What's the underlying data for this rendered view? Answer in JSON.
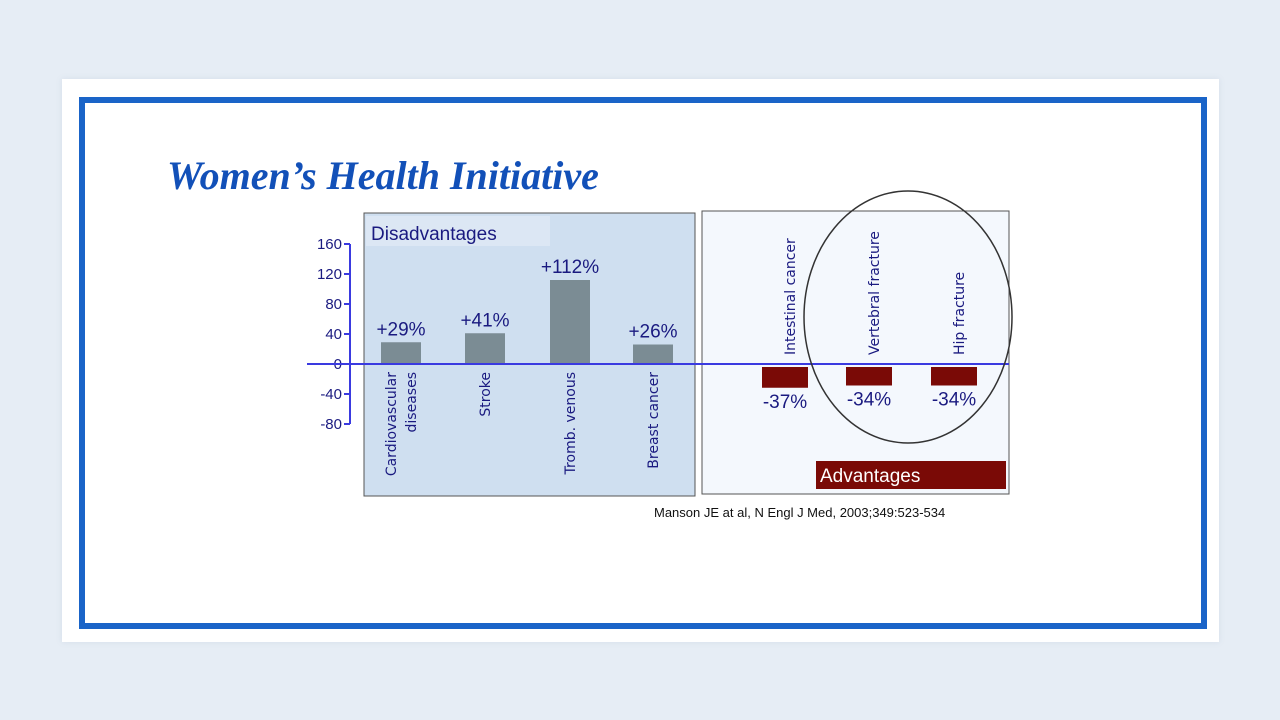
{
  "slide": {
    "title": "Women’s Health Initiative",
    "citation": "Manson JE at al, N Engl J Med, 2003;349:523-534"
  },
  "chart_data": {
    "type": "bar",
    "yticks": [
      160,
      120,
      80,
      40,
      0,
      -40,
      -80
    ],
    "ylim": [
      -80,
      160
    ],
    "panels": {
      "disadvantages": "Disadvantages",
      "advantages": "Advantages"
    },
    "series": [
      {
        "group": "disadvantages",
        "color": "#7b8c94",
        "categories": [
          [
            "Cardiovascular",
            "diseases"
          ],
          [
            "Stroke"
          ],
          [
            "Tromb. venous"
          ],
          [
            "Breast cancer"
          ]
        ],
        "values": [
          29,
          41,
          112,
          26
        ],
        "labels": [
          "+29%",
          "+41%",
          "+112%",
          "+26%"
        ]
      },
      {
        "group": "advantages",
        "color": "#7a0a06",
        "categories": [
          [
            "Intestinal cancer"
          ],
          [
            "Vertebral fracture"
          ],
          [
            "Hip fracture"
          ]
        ],
        "values": [
          -37,
          -34,
          -34
        ],
        "labels": [
          "-37%",
          "-34%",
          "-34%"
        ]
      }
    ],
    "highlight": [
      "Vertebral fracture",
      "Hip fracture"
    ],
    "colors": {
      "axis": "#3a3ae0",
      "tick_text": "#1a1a80",
      "disadv_panel_bg": "#cfdff0",
      "adv_panel_bg": "#f4f8fd",
      "adv_label_bg": "#7a0a06"
    }
  }
}
